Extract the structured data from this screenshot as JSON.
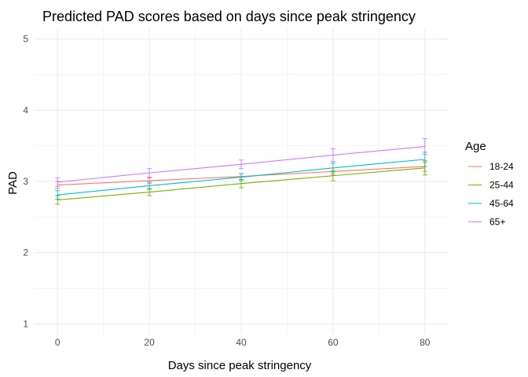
{
  "chart_data": {
    "type": "line",
    "title": "Predicted PAD scores based on days since peak stringency",
    "xlabel": "Days since peak stringency",
    "ylabel": "PAD",
    "x": [
      0,
      20,
      40,
      60,
      80
    ],
    "xlim": [
      -5,
      85
    ],
    "ylim": [
      0.85,
      5.15
    ],
    "xticks": [
      0,
      20,
      40,
      60,
      80
    ],
    "yticks": [
      1,
      2,
      3,
      4,
      5
    ],
    "grid": true,
    "error_bars": true,
    "legend": {
      "title": "Age",
      "position": "right"
    },
    "series": [
      {
        "name": "18-24",
        "color": "#F8766D",
        "values": [
          2.95,
          3.01,
          3.07,
          3.14,
          3.21
        ],
        "lower": [
          2.9,
          2.97,
          3.03,
          3.09,
          3.14
        ],
        "upper": [
          3.0,
          3.05,
          3.11,
          3.19,
          3.27
        ]
      },
      {
        "name": "25-44",
        "color": "#7CAE00",
        "values": [
          2.74,
          2.85,
          2.97,
          3.08,
          3.19
        ],
        "lower": [
          2.68,
          2.8,
          2.91,
          3.01,
          3.09
        ],
        "upper": [
          2.8,
          2.9,
          3.03,
          3.15,
          3.29
        ]
      },
      {
        "name": "45-64",
        "color": "#00BFC4",
        "values": [
          2.81,
          2.94,
          3.06,
          3.19,
          3.31
        ],
        "lower": [
          2.75,
          2.89,
          3.01,
          3.12,
          3.21
        ],
        "upper": [
          2.87,
          2.99,
          3.11,
          3.26,
          3.41
        ]
      },
      {
        "name": "65+",
        "color": "#C77CFF",
        "values": [
          2.99,
          3.12,
          3.24,
          3.37,
          3.49
        ],
        "lower": [
          2.93,
          3.06,
          3.18,
          3.28,
          3.38
        ],
        "upper": [
          3.05,
          3.18,
          3.3,
          3.46,
          3.6
        ]
      }
    ]
  }
}
